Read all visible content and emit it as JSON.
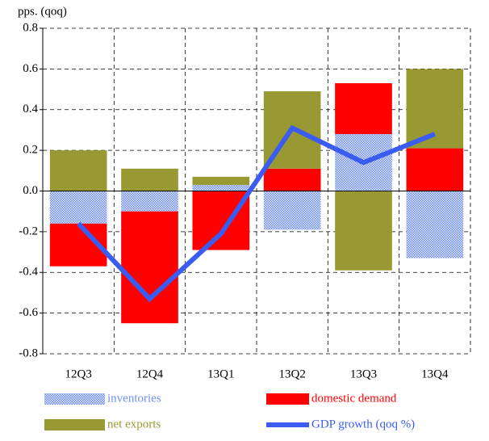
{
  "chart_data": {
    "type": "bar",
    "stacked": true,
    "y_label": "pps. (qoq)",
    "categories": [
      "12Q3",
      "12Q4",
      "13Q1",
      "13Q2",
      "13Q3",
      "13Q4"
    ],
    "series": [
      {
        "name": "inventories",
        "color": "#6f8ff0",
        "pattern": "checker",
        "values": [
          -0.16,
          -0.1,
          0.03,
          -0.19,
          0.28,
          -0.33
        ]
      },
      {
        "name": "domestic demand",
        "color": "#ff0000",
        "values": [
          -0.21,
          -0.55,
          -0.29,
          0.11,
          0.25,
          0.21
        ]
      },
      {
        "name": "net exports",
        "color": "#999933",
        "values": [
          0.2,
          0.11,
          0.04,
          0.38,
          -0.39,
          0.39
        ]
      },
      {
        "name": "GDP growth (qoq %)",
        "type": "line",
        "color": "#3b5cf0",
        "values": [
          -0.16,
          -0.53,
          -0.21,
          0.31,
          0.14,
          0.28
        ]
      }
    ],
    "ylim": [
      -0.8,
      0.8
    ],
    "yticks": [
      -0.8,
      -0.6,
      -0.4,
      -0.2,
      {
        "value": 0,
        "label": "0.0"
      },
      0.2,
      0.4,
      0.6,
      0.8
    ],
    "grid": true,
    "legend": "bottom"
  }
}
